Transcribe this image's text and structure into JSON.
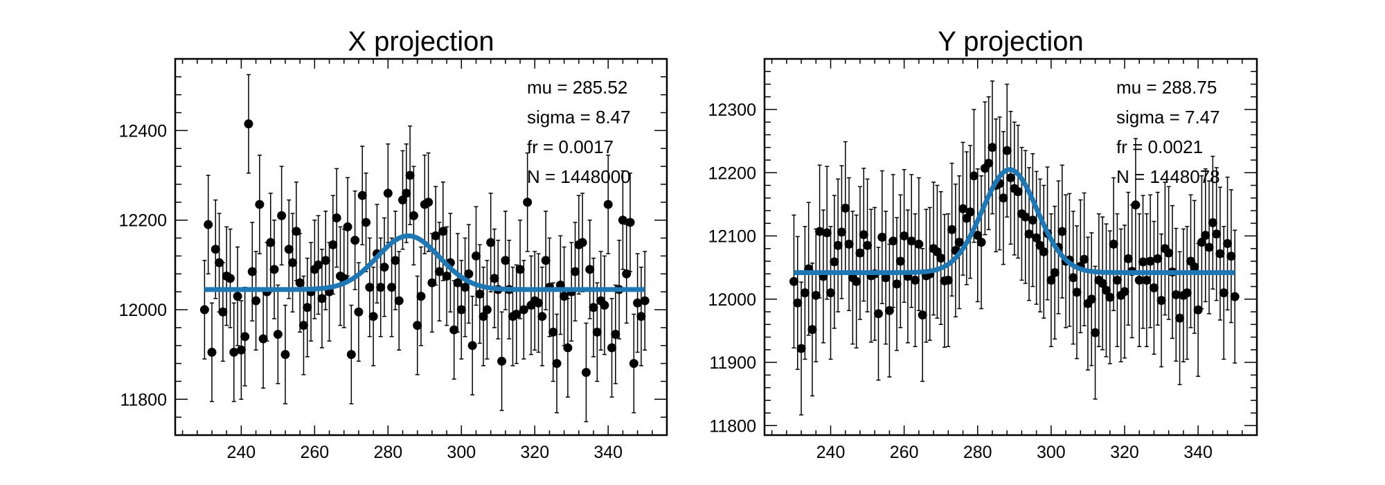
{
  "chart_data": [
    {
      "type": "scatter",
      "title": "X projection",
      "xlim": [
        222,
        356
      ],
      "ylim": [
        11720,
        12560
      ],
      "xticks": [
        240,
        260,
        280,
        300,
        320,
        340
      ],
      "yticks": [
        11800,
        12000,
        12200,
        12400
      ],
      "stats": [
        "mu = 285.52",
        "sigma = 8.47",
        "fr = 0.0017",
        "N = 1448000"
      ],
      "fit": {
        "type": "gaussian+constant",
        "mu": 285.52,
        "sigma": 8.47,
        "baseline": 12045,
        "peak": 12165,
        "color": "#1f77b4"
      },
      "points": {
        "x": [
          230,
          231,
          232,
          233,
          234,
          235,
          236,
          237,
          238,
          239,
          240,
          241,
          242,
          243,
          244,
          245,
          246,
          247,
          248,
          249,
          250,
          251,
          252,
          253,
          254,
          255,
          256,
          257,
          258,
          259,
          260,
          261,
          262,
          263,
          264,
          265,
          266,
          267,
          268,
          269,
          270,
          271,
          272,
          273,
          274,
          275,
          276,
          277,
          278,
          279,
          280,
          281,
          282,
          283,
          284,
          285,
          286,
          287,
          288,
          289,
          290,
          291,
          292,
          293,
          294,
          295,
          296,
          297,
          298,
          299,
          300,
          301,
          302,
          303,
          304,
          305,
          306,
          307,
          308,
          309,
          310,
          311,
          312,
          313,
          314,
          315,
          316,
          317,
          318,
          319,
          320,
          321,
          322,
          323,
          324,
          325,
          326,
          327,
          328,
          329,
          330,
          331,
          332,
          333,
          334,
          335,
          336,
          337,
          338,
          339,
          340,
          341,
          342,
          343,
          344,
          345,
          346,
          347,
          348,
          349,
          350
        ],
        "y": [
          12000,
          12190,
          11905,
          12135,
          12105,
          11995,
          12075,
          12070,
          11905,
          12030,
          11910,
          11940,
          12415,
          12085,
          12020,
          12235,
          11935,
          12040,
          12150,
          12090,
          11945,
          12210,
          11900,
          12135,
          12105,
          12175,
          12060,
          11965,
          12005,
          12040,
          12090,
          12100,
          12025,
          12110,
          12040,
          12145,
          12205,
          12075,
          12070,
          12185,
          11900,
          12155,
          11995,
          12255,
          12195,
          12050,
          11985,
          12125,
          12050,
          12095,
          12260,
          12050,
          12110,
          12020,
          12245,
          12260,
          12300,
          12210,
          11965,
          12030,
          12235,
          12240,
          12060,
          12165,
          12085,
          12175,
          12075,
          12105,
          11955,
          12060,
          12000,
          12050,
          12080,
          11920,
          12120,
          12035,
          11985,
          12000,
          12150,
          12070,
          12045,
          11885,
          12110,
          12045,
          11985,
          11990,
          12090,
          12000,
          12240,
          12010,
          12020,
          12015,
          11985,
          12110,
          12050,
          11950,
          11880,
          12055,
          12030,
          11915,
          12040,
          12085,
          12145,
          12150,
          11860,
          12090,
          12005,
          11950,
          12020,
          12010,
          12235,
          11915,
          11945,
          12045,
          12200,
          12080,
          12195,
          11880,
          12015,
          11985,
          12020
        ],
        "err": 110
      }
    },
    {
      "type": "scatter",
      "title": "Y projection",
      "xlim": [
        222,
        356
      ],
      "ylim": [
        11785,
        12380
      ],
      "xticks": [
        240,
        260,
        280,
        300,
        320,
        340
      ],
      "yticks": [
        11800,
        11900,
        12000,
        12100,
        12200,
        12300
      ],
      "stats": [
        "mu = 288.75",
        "sigma = 7.47",
        "fr = 0.0021",
        "N = 1448078"
      ],
      "fit": {
        "type": "gaussian+constant",
        "mu": 288.75,
        "sigma": 7.47,
        "baseline": 12042,
        "peak": 12205,
        "color": "#1f77b4"
      },
      "points": {
        "x": [
          230,
          231,
          232,
          233,
          234,
          235,
          236,
          237,
          238,
          239,
          240,
          241,
          242,
          243,
          244,
          245,
          246,
          247,
          248,
          249,
          250,
          251,
          252,
          253,
          254,
          255,
          256,
          257,
          258,
          259,
          260,
          261,
          262,
          263,
          264,
          265,
          266,
          267,
          268,
          269,
          270,
          271,
          272,
          273,
          274,
          275,
          276,
          277,
          278,
          279,
          280,
          281,
          282,
          283,
          284,
          285,
          286,
          287,
          288,
          289,
          290,
          291,
          292,
          293,
          294,
          295,
          296,
          297,
          298,
          299,
          300,
          301,
          302,
          303,
          304,
          305,
          306,
          307,
          308,
          309,
          310,
          311,
          312,
          313,
          314,
          315,
          316,
          317,
          318,
          319,
          320,
          321,
          322,
          323,
          324,
          325,
          326,
          327,
          328,
          329,
          330,
          331,
          332,
          333,
          334,
          335,
          336,
          337,
          338,
          339,
          340,
          341,
          342,
          343,
          344,
          345,
          346,
          347,
          348,
          349,
          350
        ],
        "y": [
          12028,
          11994,
          11922,
          12010,
          12048,
          11952,
          12006,
          12107,
          12036,
          12105,
          12010,
          12059,
          12085,
          12106,
          12144,
          12087,
          12034,
          12028,
          12073,
          12102,
          12085,
          12037,
          12040,
          11977,
          12098,
          12034,
          11982,
          12092,
          12024,
          12060,
          12100,
          12036,
          12092,
          12030,
          12087,
          11975,
          12037,
          12040,
          12080,
          12075,
          12065,
          12029,
          12030,
          12110,
          12077,
          12090,
          12143,
          12128,
          12138,
          12195,
          12101,
          12090,
          12207,
          12215,
          12240,
          12180,
          12183,
          12160,
          12235,
          12192,
          12175,
          12170,
          12135,
          12130,
          12103,
          12125,
          12097,
          12085,
          12075,
          12104,
          12030,
          12042,
          12082,
          12107,
          12060,
          12062,
          12034,
          12011,
          12052,
          12063,
          11993,
          12000,
          11947,
          12030,
          12025,
          12014,
          12003,
          12087,
          12030,
          12006,
          12012,
          12064,
          12044,
          12149,
          12030,
          12059,
          12030,
          12060,
          12018,
          12064,
          11998,
          12080,
          12073,
          12043,
          12007,
          11970,
          12006,
          12010,
          12060,
          12051,
          11983,
          12090,
          12101,
          12082,
          12121,
          12103,
          12072,
          12010,
          12088,
          12068,
          12004
        ],
        "err": 105
      }
    }
  ]
}
